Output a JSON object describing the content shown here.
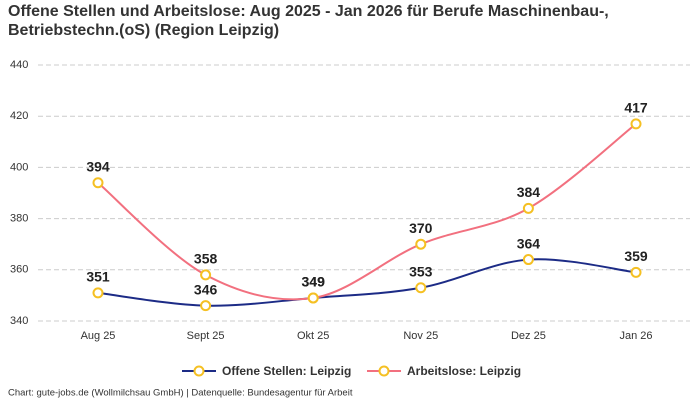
{
  "chart_data": {
    "type": "line",
    "title": "Offene Stellen und Arbeitslose: Aug 2025 - Jan 2026 für Berufe Maschinenbau-, Betriebstechn.(oS) (Region Leipzig)",
    "categories": [
      "Aug 25",
      "Sept 25",
      "Okt 25",
      "Nov 25",
      "Dez 25",
      "Jan 26"
    ],
    "series": [
      {
        "name": "Offene Stellen: Leipzig",
        "color": "#1c2b86",
        "values": [
          351,
          346,
          349,
          353,
          364,
          359
        ]
      },
      {
        "name": "Arbeitslose: Leipzig",
        "color": "#f2707f",
        "values": [
          394,
          358,
          349,
          370,
          384,
          417
        ]
      }
    ],
    "marker_color": "#f5c023",
    "ylim": [
      340,
      440
    ],
    "yticks": [
      340,
      360,
      380,
      400,
      420,
      440
    ],
    "grid": true,
    "legend": "bottom",
    "source": "Chart: gute-jobs.de (Wollmilchsau GmbH) | Datenquelle: Bundesagentur für Arbeit"
  }
}
